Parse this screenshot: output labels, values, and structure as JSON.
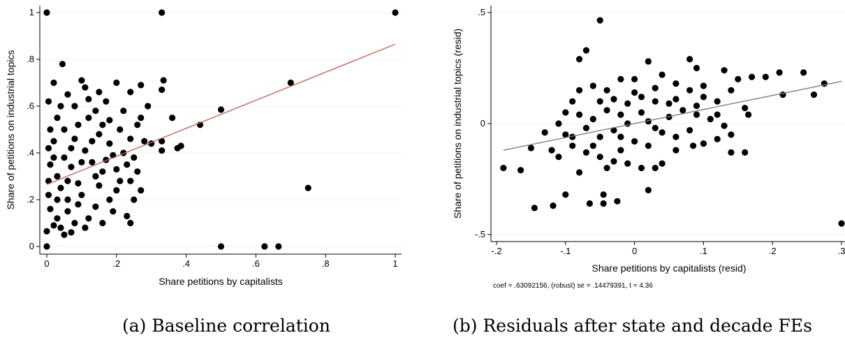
{
  "captions": {
    "a": "(a) Baseline correlation",
    "b": "(b) Residuals after state and decade FEs"
  },
  "chart_data": [
    {
      "type": "scatter",
      "xlabel": "Share petitions by capitalists",
      "ylabel": "Share of petitions on industrial topics",
      "xlim": [
        0,
        1
      ],
      "ylim": [
        0,
        1
      ],
      "xticks": [
        "0",
        ".2",
        ".4",
        ".6",
        ".8",
        "1"
      ],
      "yticks": [
        "0",
        ".2",
        ".4",
        ".6",
        ".8",
        "1"
      ],
      "grid": true,
      "point_color": "#000000",
      "fit_color": "#c8645a",
      "fit_line": [
        [
          0,
          0.265
        ],
        [
          1,
          0.865
        ]
      ],
      "points": [
        [
          0,
          1
        ],
        [
          0.33,
          1
        ],
        [
          1,
          1
        ],
        [
          0.045,
          0.78
        ],
        [
          0.335,
          0.71
        ],
        [
          0.33,
          0.67
        ],
        [
          0.7,
          0.7
        ],
        [
          0.5,
          0.585
        ],
        [
          0.44,
          0.52
        ],
        [
          0.36,
          0.55
        ],
        [
          0.375,
          0.42
        ],
        [
          0.385,
          0.43
        ],
        [
          0.33,
          0.45
        ],
        [
          0.33,
          0.41
        ],
        [
          0.75,
          0.25
        ],
        [
          0.5,
          0
        ],
        [
          0.625,
          0
        ],
        [
          0.665,
          0
        ],
        [
          0,
          0
        ],
        [
          0,
          0.065
        ],
        [
          0.02,
          0.09
        ],
        [
          0.05,
          0.05
        ],
        [
          0.07,
          0.06
        ],
        [
          0.11,
          0.08
        ],
        [
          0.16,
          0.1
        ],
        [
          0.19,
          0.15
        ],
        [
          0.24,
          0.1
        ],
        [
          0.23,
          0.13
        ],
        [
          0.25,
          0.2
        ],
        [
          0.27,
          0.24
        ],
        [
          0.26,
          0.32
        ],
        [
          0.28,
          0.45
        ],
        [
          0.27,
          0.55
        ],
        [
          0.29,
          0.6
        ],
        [
          0.24,
          0.66
        ],
        [
          0.27,
          0.69
        ],
        [
          0.2,
          0.7
        ],
        [
          0.15,
          0.66
        ],
        [
          0.1,
          0.71
        ],
        [
          0.02,
          0.7
        ],
        [
          0.005,
          0.62
        ],
        [
          0.01,
          0.5
        ],
        [
          0.005,
          0.42
        ],
        [
          0.01,
          0.35
        ],
        [
          0.005,
          0.28
        ],
        [
          0.005,
          0.22
        ],
        [
          0.01,
          0.16
        ],
        [
          0.03,
          0.12
        ],
        [
          0.06,
          0.2
        ],
        [
          0.09,
          0.27
        ],
        [
          0.13,
          0.36
        ],
        [
          0.18,
          0.44
        ],
        [
          0.21,
          0.5
        ],
        [
          0.22,
          0.58
        ],
        [
          0.17,
          0.62
        ],
        [
          0.12,
          0.55
        ],
        [
          0.08,
          0.46
        ],
        [
          0.05,
          0.38
        ],
        [
          0.03,
          0.3
        ],
        [
          0.07,
          0.34
        ],
        [
          0.11,
          0.41
        ],
        [
          0.15,
          0.48
        ],
        [
          0.19,
          0.39
        ],
        [
          0.14,
          0.3
        ],
        [
          0.1,
          0.22
        ],
        [
          0.06,
          0.15
        ],
        [
          0.04,
          0.25
        ],
        [
          0.08,
          0.6
        ],
        [
          0.12,
          0.63
        ],
        [
          0.16,
          0.52
        ],
        [
          0.2,
          0.33
        ],
        [
          0.22,
          0.4
        ],
        [
          0.24,
          0.46
        ],
        [
          0.03,
          0.55
        ],
        [
          0.06,
          0.65
        ],
        [
          0.09,
          0.52
        ],
        [
          0.13,
          0.45
        ],
        [
          0.17,
          0.37
        ],
        [
          0.21,
          0.28
        ],
        [
          0.18,
          0.2
        ],
        [
          0.14,
          0.17
        ],
        [
          0.12,
          0.12
        ],
        [
          0.08,
          0.1
        ],
        [
          0.04,
          0.08
        ],
        [
          0.02,
          0.45
        ],
        [
          0.05,
          0.5
        ],
        [
          0.1,
          0.36
        ],
        [
          0.15,
          0.26
        ],
        [
          0.25,
          0.38
        ],
        [
          0.23,
          0.35
        ],
        [
          0.26,
          0.52
        ],
        [
          0.3,
          0.44
        ],
        [
          0.02,
          0.38
        ],
        [
          0.07,
          0.42
        ],
        [
          0.14,
          0.58
        ],
        [
          0.18,
          0.54
        ],
        [
          0.11,
          0.68
        ],
        [
          0.04,
          0.6
        ],
        [
          0.09,
          0.18
        ],
        [
          0.03,
          0.2
        ],
        [
          0.06,
          0.28
        ],
        [
          0.16,
          0.32
        ],
        [
          0.2,
          0.24
        ],
        [
          0.24,
          0.28
        ]
      ]
    },
    {
      "type": "scatter",
      "xlabel": "Share petitions by capitalists (resid)",
      "ylabel": "Share of petitions on industrial topics (resid)",
      "xlim": [
        -0.2,
        0.3
      ],
      "ylim": [
        -0.5,
        0.5
      ],
      "xticks": [
        "-.2",
        "-.1",
        "0",
        ".1",
        ".2",
        ".3"
      ],
      "yticks": [
        "-.5",
        "0",
        ".5"
      ],
      "grid": true,
      "point_color": "#000000",
      "fit_color": "#7f7f7f",
      "fit_line": [
        [
          -0.19,
          -0.12
        ],
        [
          0.3,
          0.19
        ]
      ],
      "note": "coef = .63092156, (robust) se = .14479391, t = 4.36",
      "points": [
        [
          -0.05,
          0.465
        ],
        [
          0.3,
          -0.45
        ],
        [
          -0.19,
          -0.2
        ],
        [
          -0.165,
          -0.21
        ],
        [
          -0.145,
          -0.38
        ],
        [
          -0.118,
          -0.37
        ],
        [
          -0.15,
          -0.11
        ],
        [
          -0.13,
          -0.04
        ],
        [
          -0.12,
          -0.12
        ],
        [
          -0.07,
          0.33
        ],
        [
          -0.08,
          0.29
        ],
        [
          -0.1,
          -0.32
        ],
        [
          -0.065,
          -0.36
        ],
        [
          -0.045,
          -0.36
        ],
        [
          -0.025,
          -0.35
        ],
        [
          -0.045,
          -0.32
        ],
        [
          -0.08,
          -0.22
        ],
        [
          0.02,
          -0.3
        ],
        [
          0.08,
          0.29
        ],
        [
          0.09,
          0.25
        ],
        [
          0.13,
          0.24
        ],
        [
          0.15,
          0.2
        ],
        [
          0.17,
          0.21
        ],
        [
          0.19,
          0.21
        ],
        [
          0.21,
          0.23
        ],
        [
          0.245,
          0.23
        ],
        [
          0.26,
          0.13
        ],
        [
          0.275,
          0.18
        ],
        [
          0.215,
          0.13
        ],
        [
          0.16,
          0.07
        ],
        [
          0.165,
          0.04
        ],
        [
          0.14,
          -0.05
        ],
        [
          0.14,
          -0.13
        ],
        [
          0.16,
          -0.13
        ],
        [
          0.12,
          -0.07
        ],
        [
          0.1,
          -0.09
        ],
        [
          0.085,
          -0.1
        ],
        [
          0.06,
          -0.12
        ],
        [
          0.04,
          -0.18
        ],
        [
          0.03,
          -0.2
        ],
        [
          0.01,
          -0.2
        ],
        [
          -0.01,
          -0.18
        ],
        [
          -0.03,
          -0.17
        ],
        [
          -0.05,
          -0.15
        ],
        [
          -0.07,
          -0.13
        ],
        [
          -0.09,
          -0.1
        ],
        [
          -0.1,
          -0.05
        ],
        [
          -0.11,
          0.0
        ],
        [
          -0.1,
          0.05
        ],
        [
          -0.09,
          0.1
        ],
        [
          -0.08,
          0.15
        ],
        [
          -0.06,
          0.17
        ],
        [
          -0.04,
          0.15
        ],
        [
          -0.02,
          0.2
        ],
        [
          0.0,
          0.2
        ],
        [
          0.02,
          0.28
        ],
        [
          0.04,
          0.22
        ],
        [
          0.06,
          0.18
        ],
        [
          0.08,
          0.15
        ],
        [
          0.1,
          0.12
        ],
        [
          0.12,
          0.1
        ],
        [
          0.14,
          0.15
        ],
        [
          0.03,
          0.1
        ],
        [
          0.01,
          0.05
        ],
        [
          -0.01,
          0.0
        ],
        [
          -0.03,
          -0.03
        ],
        [
          -0.05,
          -0.06
        ],
        [
          -0.02,
          0.04
        ],
        [
          0.02,
          0.01
        ],
        [
          0.05,
          0.03
        ],
        [
          0.07,
          0.06
        ],
        [
          0.09,
          0.04
        ],
        [
          0.11,
          0.02
        ],
        [
          0.04,
          -0.04
        ],
        [
          0.06,
          -0.06
        ],
        [
          0.0,
          -0.08
        ],
        [
          -0.04,
          0.06
        ],
        [
          -0.06,
          0.02
        ],
        [
          -0.08,
          0.04
        ],
        [
          -0.07,
          -0.02
        ],
        [
          0.01,
          0.12
        ],
        [
          0.03,
          0.16
        ],
        [
          -0.01,
          0.09
        ],
        [
          -0.03,
          0.11
        ],
        [
          0.05,
          0.09
        ],
        [
          0.08,
          -0.03
        ],
        [
          0.02,
          -0.1
        ],
        [
          -0.02,
          -0.12
        ],
        [
          0.0,
          0.14
        ],
        [
          -0.05,
          0.1
        ],
        [
          0.12,
          0.04
        ],
        [
          0.06,
          0.11
        ],
        [
          -0.09,
          -0.06
        ],
        [
          -0.11,
          -0.15
        ],
        [
          -0.02,
          -0.06
        ],
        [
          0.03,
          -0.02
        ],
        [
          -0.06,
          -0.1
        ],
        [
          0.09,
          0.08
        ],
        [
          0.1,
          0.17
        ],
        [
          -0.04,
          -0.2
        ],
        [
          0.13,
          -0.01
        ]
      ]
    }
  ]
}
